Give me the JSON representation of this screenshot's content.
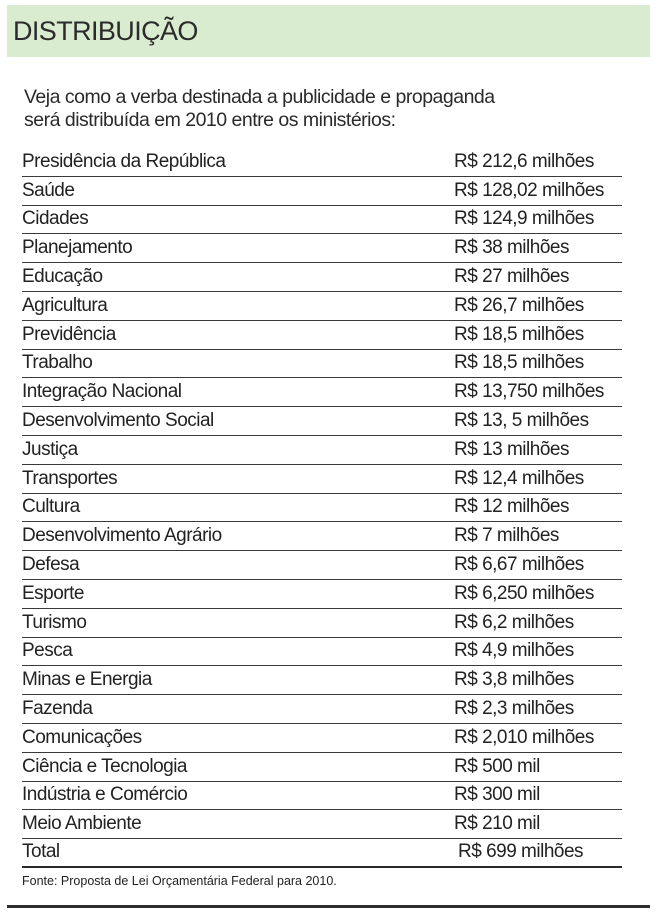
{
  "header": {
    "title": "DISTRIBUIÇÃO",
    "background_color": "#d9ecd0"
  },
  "intro": {
    "line1": "Veja como a verba destinada a publicidade e propaganda",
    "line2": "será distribuída em 2010 entre os ministérios:"
  },
  "table": {
    "rows": [
      {
        "name": "Presidência da República",
        "value": "R$ 212,6 milhões"
      },
      {
        "name": "Saúde",
        "value": "R$ 128,02 milhões"
      },
      {
        "name": "Cidades",
        "value": "R$ 124,9 milhões"
      },
      {
        "name": "Planejamento",
        "value": "R$ 38 milhões"
      },
      {
        "name": "Educação",
        "value": "R$ 27 milhões"
      },
      {
        "name": "Agricultura",
        "value": "R$ 26,7 milhões"
      },
      {
        "name": "Previdência",
        "value": "R$ 18,5 milhões"
      },
      {
        "name": "Trabalho",
        "value": "R$ 18,5 milhões"
      },
      {
        "name": "Integração Nacional",
        "value": "R$ 13,750 milhões"
      },
      {
        "name": "Desenvolvimento Social",
        "value": "R$ 13, 5 milhões"
      },
      {
        "name": "Justiça",
        "value": "R$ 13 milhões"
      },
      {
        "name": "Transportes",
        "value": "R$ 12,4 milhões"
      },
      {
        "name": "Cultura",
        "value": "R$ 12 milhões"
      },
      {
        "name": "Desenvolvimento Agrário",
        "value": "R$ 7 milhões"
      },
      {
        "name": "Defesa",
        "value": "R$ 6,67 milhões"
      },
      {
        "name": "Esporte",
        "value": "R$ 6,250 milhões"
      },
      {
        "name": "Turismo",
        "value": "R$ 6,2 milhões"
      },
      {
        "name": "Pesca",
        "value": "R$ 4,9 milhões"
      },
      {
        "name": "Minas e Energia",
        "value": "R$ 3,8 milhões"
      },
      {
        "name": "Fazenda",
        "value": "R$ 2,3 milhões"
      },
      {
        "name": "Comunicações",
        "value": "R$ 2,010 milhões"
      },
      {
        "name": "Ciência e Tecnologia",
        "value": "R$ 500 mil"
      },
      {
        "name": "Indústria e Comércio",
        "value": "R$ 300 mil"
      },
      {
        "name": "Meio Ambiente",
        "value": "R$ 210 mil"
      }
    ],
    "total": {
      "name": "Total",
      "value": "R$ 699 milhões"
    }
  },
  "source": "Fonte: Proposta de Lei Orçamentária Federal para 2010."
}
